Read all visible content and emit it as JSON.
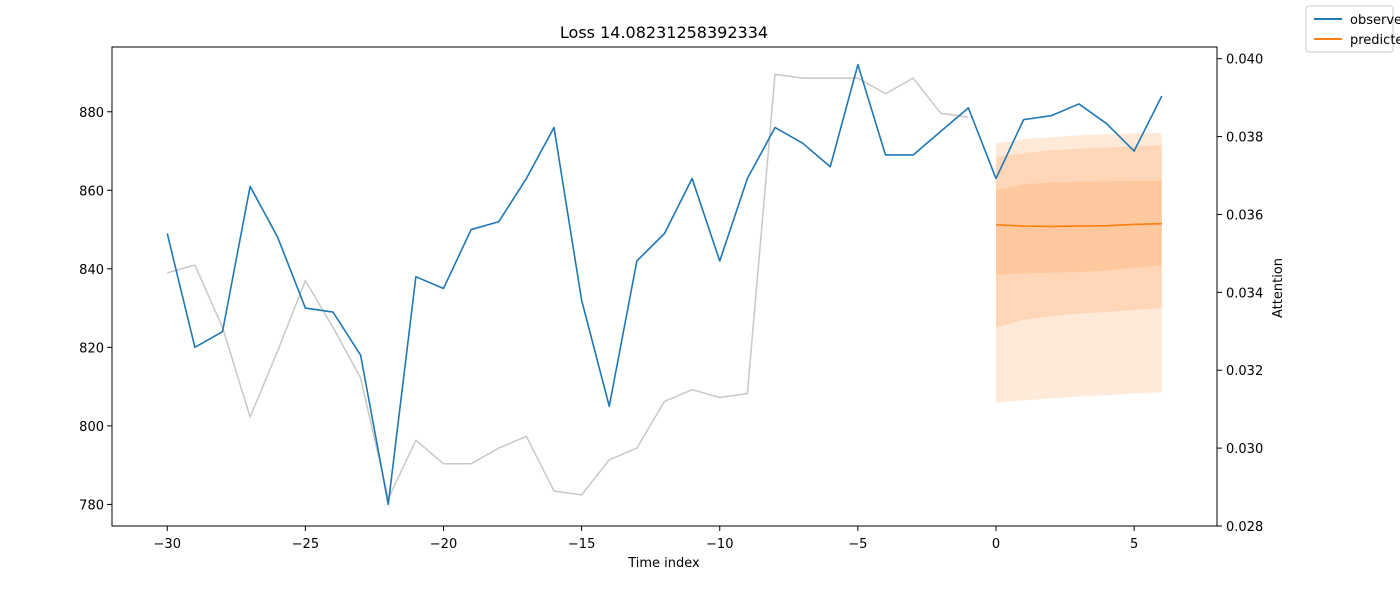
{
  "chart_data": {
    "type": "line",
    "title": "Loss 14.08231258392334",
    "xlabel": "Time index",
    "ylabel": "",
    "y2label": "Attention",
    "xlim": [
      -32,
      8
    ],
    "ylim": [
      774.5,
      896.5
    ],
    "y2lim": [
      0.028,
      0.0403
    ],
    "x_ticks": [
      -30,
      -25,
      -20,
      -15,
      -10,
      -5,
      0,
      5
    ],
    "x_tick_labels": [
      "−30",
      "−25",
      "−20",
      "−15",
      "−10",
      "−5",
      "0",
      "5"
    ],
    "y_ticks": [
      780,
      800,
      820,
      840,
      860,
      880
    ],
    "y_tick_labels": [
      "780",
      "800",
      "820",
      "840",
      "860",
      "880"
    ],
    "y2_ticks": [
      0.028,
      0.03,
      0.032,
      0.034,
      0.036,
      0.038,
      0.04
    ],
    "y2_tick_labels": [
      "0.028",
      "0.030",
      "0.032",
      "0.034",
      "0.036",
      "0.038",
      "0.040"
    ],
    "grid": false,
    "legend_position": "top-right outside",
    "legend": [
      "observed",
      "predicted"
    ],
    "colors": {
      "observed": "#1f77b4",
      "predicted": "#ff7f0e",
      "attention": "#c8c8c8",
      "band_outer": "#ffe9d9",
      "band_middle": "#ffd7b8",
      "band_inner": "#ffc89e"
    },
    "series": [
      {
        "name": "observed",
        "axis": "left",
        "x": [
          -30,
          -29,
          -28,
          -27,
          -26,
          -25,
          -24,
          -23,
          -22,
          -21,
          -20,
          -19,
          -18,
          -17,
          -16,
          -15,
          -14,
          -13,
          -12,
          -11,
          -10,
          -9,
          -8,
          -7,
          -6,
          -5,
          -4,
          -3,
          -2,
          -1,
          0,
          1,
          2,
          3,
          4,
          5,
          6
        ],
        "values": [
          849,
          820,
          824,
          861,
          848,
          830,
          829,
          818,
          780,
          838,
          835,
          850,
          852,
          863,
          876,
          832,
          805,
          842,
          849,
          863,
          842,
          863,
          876,
          872,
          866,
          892,
          869,
          869,
          875,
          881,
          863,
          878,
          879,
          882,
          877,
          870,
          884
        ]
      },
      {
        "name": "predicted",
        "axis": "left",
        "x": [
          0,
          1,
          2,
          3,
          4,
          5,
          6
        ],
        "values": [
          851.2,
          850.9,
          850.8,
          850.9,
          851.0,
          851.3,
          851.5
        ]
      },
      {
        "name": "attention",
        "axis": "right",
        "x": [
          -30,
          -29,
          -28,
          -27,
          -26,
          -25,
          -24,
          -23,
          -22,
          -21,
          -20,
          -19,
          -18,
          -17,
          -16,
          -15,
          -14,
          -13,
          -12,
          -11,
          -10,
          -9,
          -8,
          -7,
          -6,
          -5,
          -4,
          -3,
          -2,
          -1
        ],
        "values": [
          0.0345,
          0.0347,
          0.0331,
          0.0308,
          0.0325,
          0.0343,
          0.0331,
          0.0318,
          0.0287,
          0.0302,
          0.0296,
          0.0296,
          0.03,
          0.0303,
          0.0289,
          0.0288,
          0.0297,
          0.03,
          0.0312,
          0.0315,
          0.0313,
          0.0314,
          0.0396,
          0.0395,
          0.0395,
          0.0395,
          0.0391,
          0.0395,
          0.0386,
          0.0385
        ]
      }
    ],
    "bands": [
      {
        "name": "outer",
        "x": [
          0,
          1,
          2,
          3,
          4,
          5,
          6
        ],
        "lower": [
          806,
          806.5,
          807,
          807.5,
          807.8,
          808.3,
          808.5
        ],
        "upper": [
          872,
          873,
          873.5,
          874,
          874.3,
          874.5,
          874.6
        ]
      },
      {
        "name": "middle",
        "x": [
          0,
          1,
          2,
          3,
          4,
          5,
          6
        ],
        "lower": [
          825,
          827,
          828,
          828.6,
          829,
          829.5,
          830
        ],
        "upper": [
          868.5,
          869.5,
          870.2,
          870.6,
          870.9,
          871.2,
          871.5
        ]
      },
      {
        "name": "inner",
        "x": [
          0,
          1,
          2,
          3,
          4,
          5,
          6
        ],
        "lower": [
          838.5,
          838.8,
          839,
          839.2,
          839.5,
          840.3,
          840.8
        ],
        "upper": [
          860,
          861.5,
          862,
          862.2,
          862.3,
          862.4,
          862.4
        ]
      }
    ]
  }
}
